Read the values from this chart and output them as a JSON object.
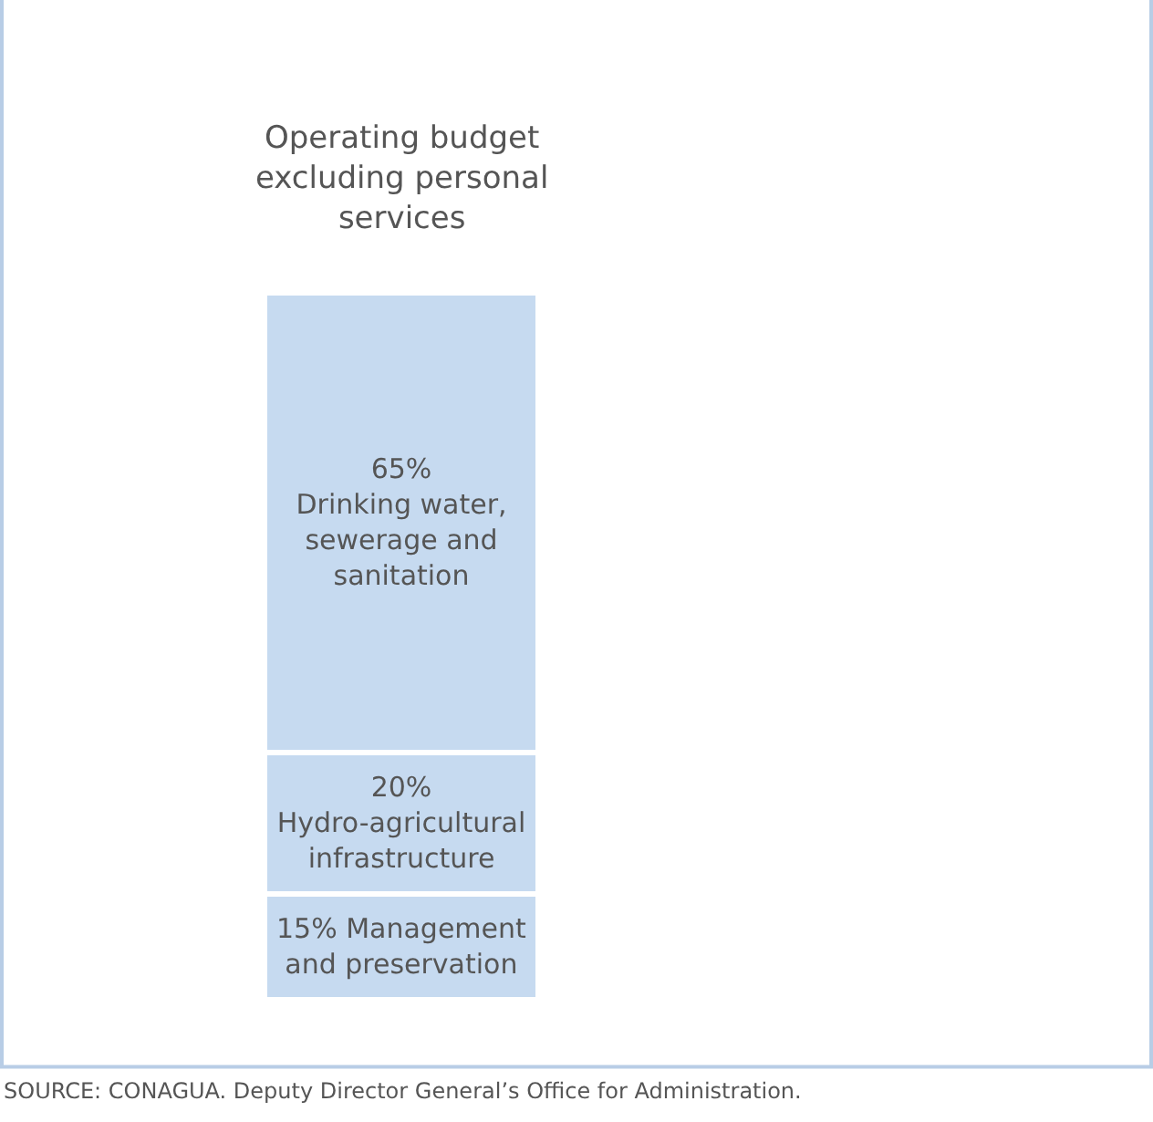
{
  "chart_data": {
    "type": "bar",
    "title": "Operating budget excluding personal services",
    "categories": [
      null
    ],
    "stacked": true,
    "legend": false,
    "series": [
      {
        "name": "Management and preservation",
        "color": "#c6daf0",
        "values": [
          15
        ],
        "value_labels": [
          "15%"
        ]
      },
      {
        "name": "Hydro-agricultural infrastructure",
        "color": "#c6daf0",
        "values": [
          20
        ],
        "value_labels": [
          "20%"
        ]
      },
      {
        "name": "Drinking water, sewerage and sanitation",
        "color": "#c6daf0",
        "values": [
          65
        ],
        "value_labels": [
          "65%"
        ]
      }
    ],
    "annotations": [
      "SOURCE: CONAGUA. Deputy Director General’s Office for Administration."
    ]
  }
}
